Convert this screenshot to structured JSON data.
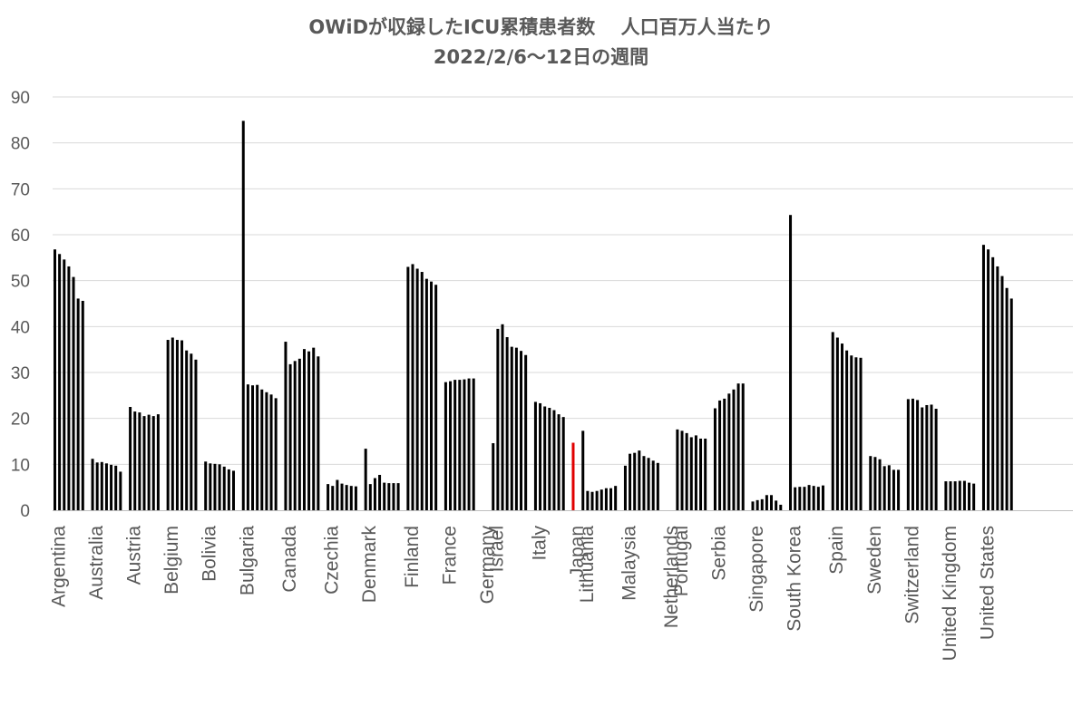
{
  "chart_data": {
    "type": "bar",
    "title": "OWiDが収録したICU累積患者数　 人口百万人当たり",
    "subtitle": "2022/2/6～12日の週間",
    "xlabel": "",
    "ylabel": "",
    "ylim": [
      0,
      90
    ],
    "yticks": [
      0,
      10,
      20,
      30,
      40,
      50,
      60,
      70,
      80,
      90
    ],
    "grid": true,
    "legend": "none",
    "colors": {
      "bar": "#000000",
      "highlight": "#e00000",
      "grid": "#d9d9d9",
      "axis": "#bfbfbf",
      "text": "#595959"
    },
    "highlight_country": "Japan",
    "countries": [
      {
        "name": "Argentina",
        "values": [
          56.8,
          55.8,
          54.6,
          53.1,
          50.8,
          46.1,
          45.6
        ]
      },
      {
        "name": "Australia",
        "values": [
          11.2,
          10.4,
          10.5,
          10.2,
          9.9,
          9.7,
          8.4
        ]
      },
      {
        "name": "Austria",
        "values": [
          22.5,
          21.5,
          21.3,
          20.5,
          20.8,
          20.5,
          20.9
        ]
      },
      {
        "name": "Belgium",
        "values": [
          37.1,
          37.6,
          37.1,
          37.0,
          34.8,
          34.1,
          32.8
        ]
      },
      {
        "name": "Bolivia",
        "values": [
          10.6,
          10.2,
          10.1,
          10.0,
          9.5,
          8.9,
          8.6
        ]
      },
      {
        "name": "Bulgaria",
        "values": [
          84.8,
          27.4,
          27.2,
          27.3,
          26.3,
          25.7,
          25.2,
          24.4
        ]
      },
      {
        "name": "Canada",
        "values": [
          36.7,
          31.8,
          32.5,
          33.0,
          35.1,
          34.6,
          35.4,
          33.5
        ]
      },
      {
        "name": "Czechia",
        "values": [
          5.7,
          5.3,
          6.6,
          5.8,
          5.5,
          5.3,
          5.2
        ]
      },
      {
        "name": "Denmark",
        "values": [
          13.4,
          5.7,
          7.0,
          7.7,
          6.0,
          5.9,
          5.9,
          5.9
        ]
      },
      {
        "name": "Finland",
        "values": [
          53.0,
          53.6,
          52.6,
          51.9,
          50.4,
          49.8,
          49.1
        ]
      },
      {
        "name": "France",
        "values": [
          27.9,
          28.1,
          28.4,
          28.4,
          28.5,
          28.7,
          28.7
        ]
      },
      {
        "name": "Germany",
        "values": []
      },
      {
        "name": "Israel",
        "values": [
          14.6,
          39.5,
          40.5,
          37.7,
          35.6,
          35.4,
          34.7,
          33.8
        ]
      },
      {
        "name": "Italy",
        "values": [
          23.6,
          23.3,
          22.6,
          22.3,
          21.8,
          20.9,
          20.3
        ]
      },
      {
        "name": "Japan",
        "values": [
          14.7
        ]
      },
      {
        "name": "Lithuania",
        "values": [
          17.3,
          4.2,
          4.0,
          4.2,
          4.5,
          4.8,
          4.8,
          5.3
        ]
      },
      {
        "name": "Malaysia",
        "values": [
          9.7,
          12.3,
          12.5,
          13.0,
          11.8,
          11.4,
          10.8,
          10.3
        ]
      },
      {
        "name": "Netherlands",
        "values": []
      },
      {
        "name": "Portugal",
        "values": [
          17.6,
          17.3,
          16.8,
          15.9,
          16.3,
          15.6,
          15.6
        ]
      },
      {
        "name": "Serbia",
        "values": [
          22.2,
          23.9,
          24.3,
          25.4,
          26.3,
          27.6,
          27.6
        ]
      },
      {
        "name": "Singapore",
        "values": [
          1.9,
          2.2,
          2.4,
          3.3,
          3.3,
          2.1,
          1.2
        ]
      },
      {
        "name": "South Korea",
        "values": [
          64.3,
          5.0,
          5.1,
          5.1,
          5.5,
          5.3,
          5.1,
          5.4
        ]
      },
      {
        "name": "Spain",
        "values": [
          38.8,
          37.6,
          36.3,
          34.8,
          33.7,
          33.3,
          33.2
        ]
      },
      {
        "name": "Sweden",
        "values": [
          11.8,
          11.6,
          11.1,
          9.6,
          9.8,
          8.8,
          8.8
        ]
      },
      {
        "name": "Switzerland",
        "values": [
          24.2,
          24.3,
          24.0,
          22.4,
          22.9,
          23.0,
          22.1
        ]
      },
      {
        "name": "United Kingdom",
        "values": [
          6.3,
          6.3,
          6.3,
          6.4,
          6.4,
          6.0,
          5.8
        ]
      },
      {
        "name": "United States",
        "values": [
          57.8,
          56.8,
          55.1,
          53.1,
          51.0,
          48.4,
          46.1
        ]
      }
    ]
  }
}
